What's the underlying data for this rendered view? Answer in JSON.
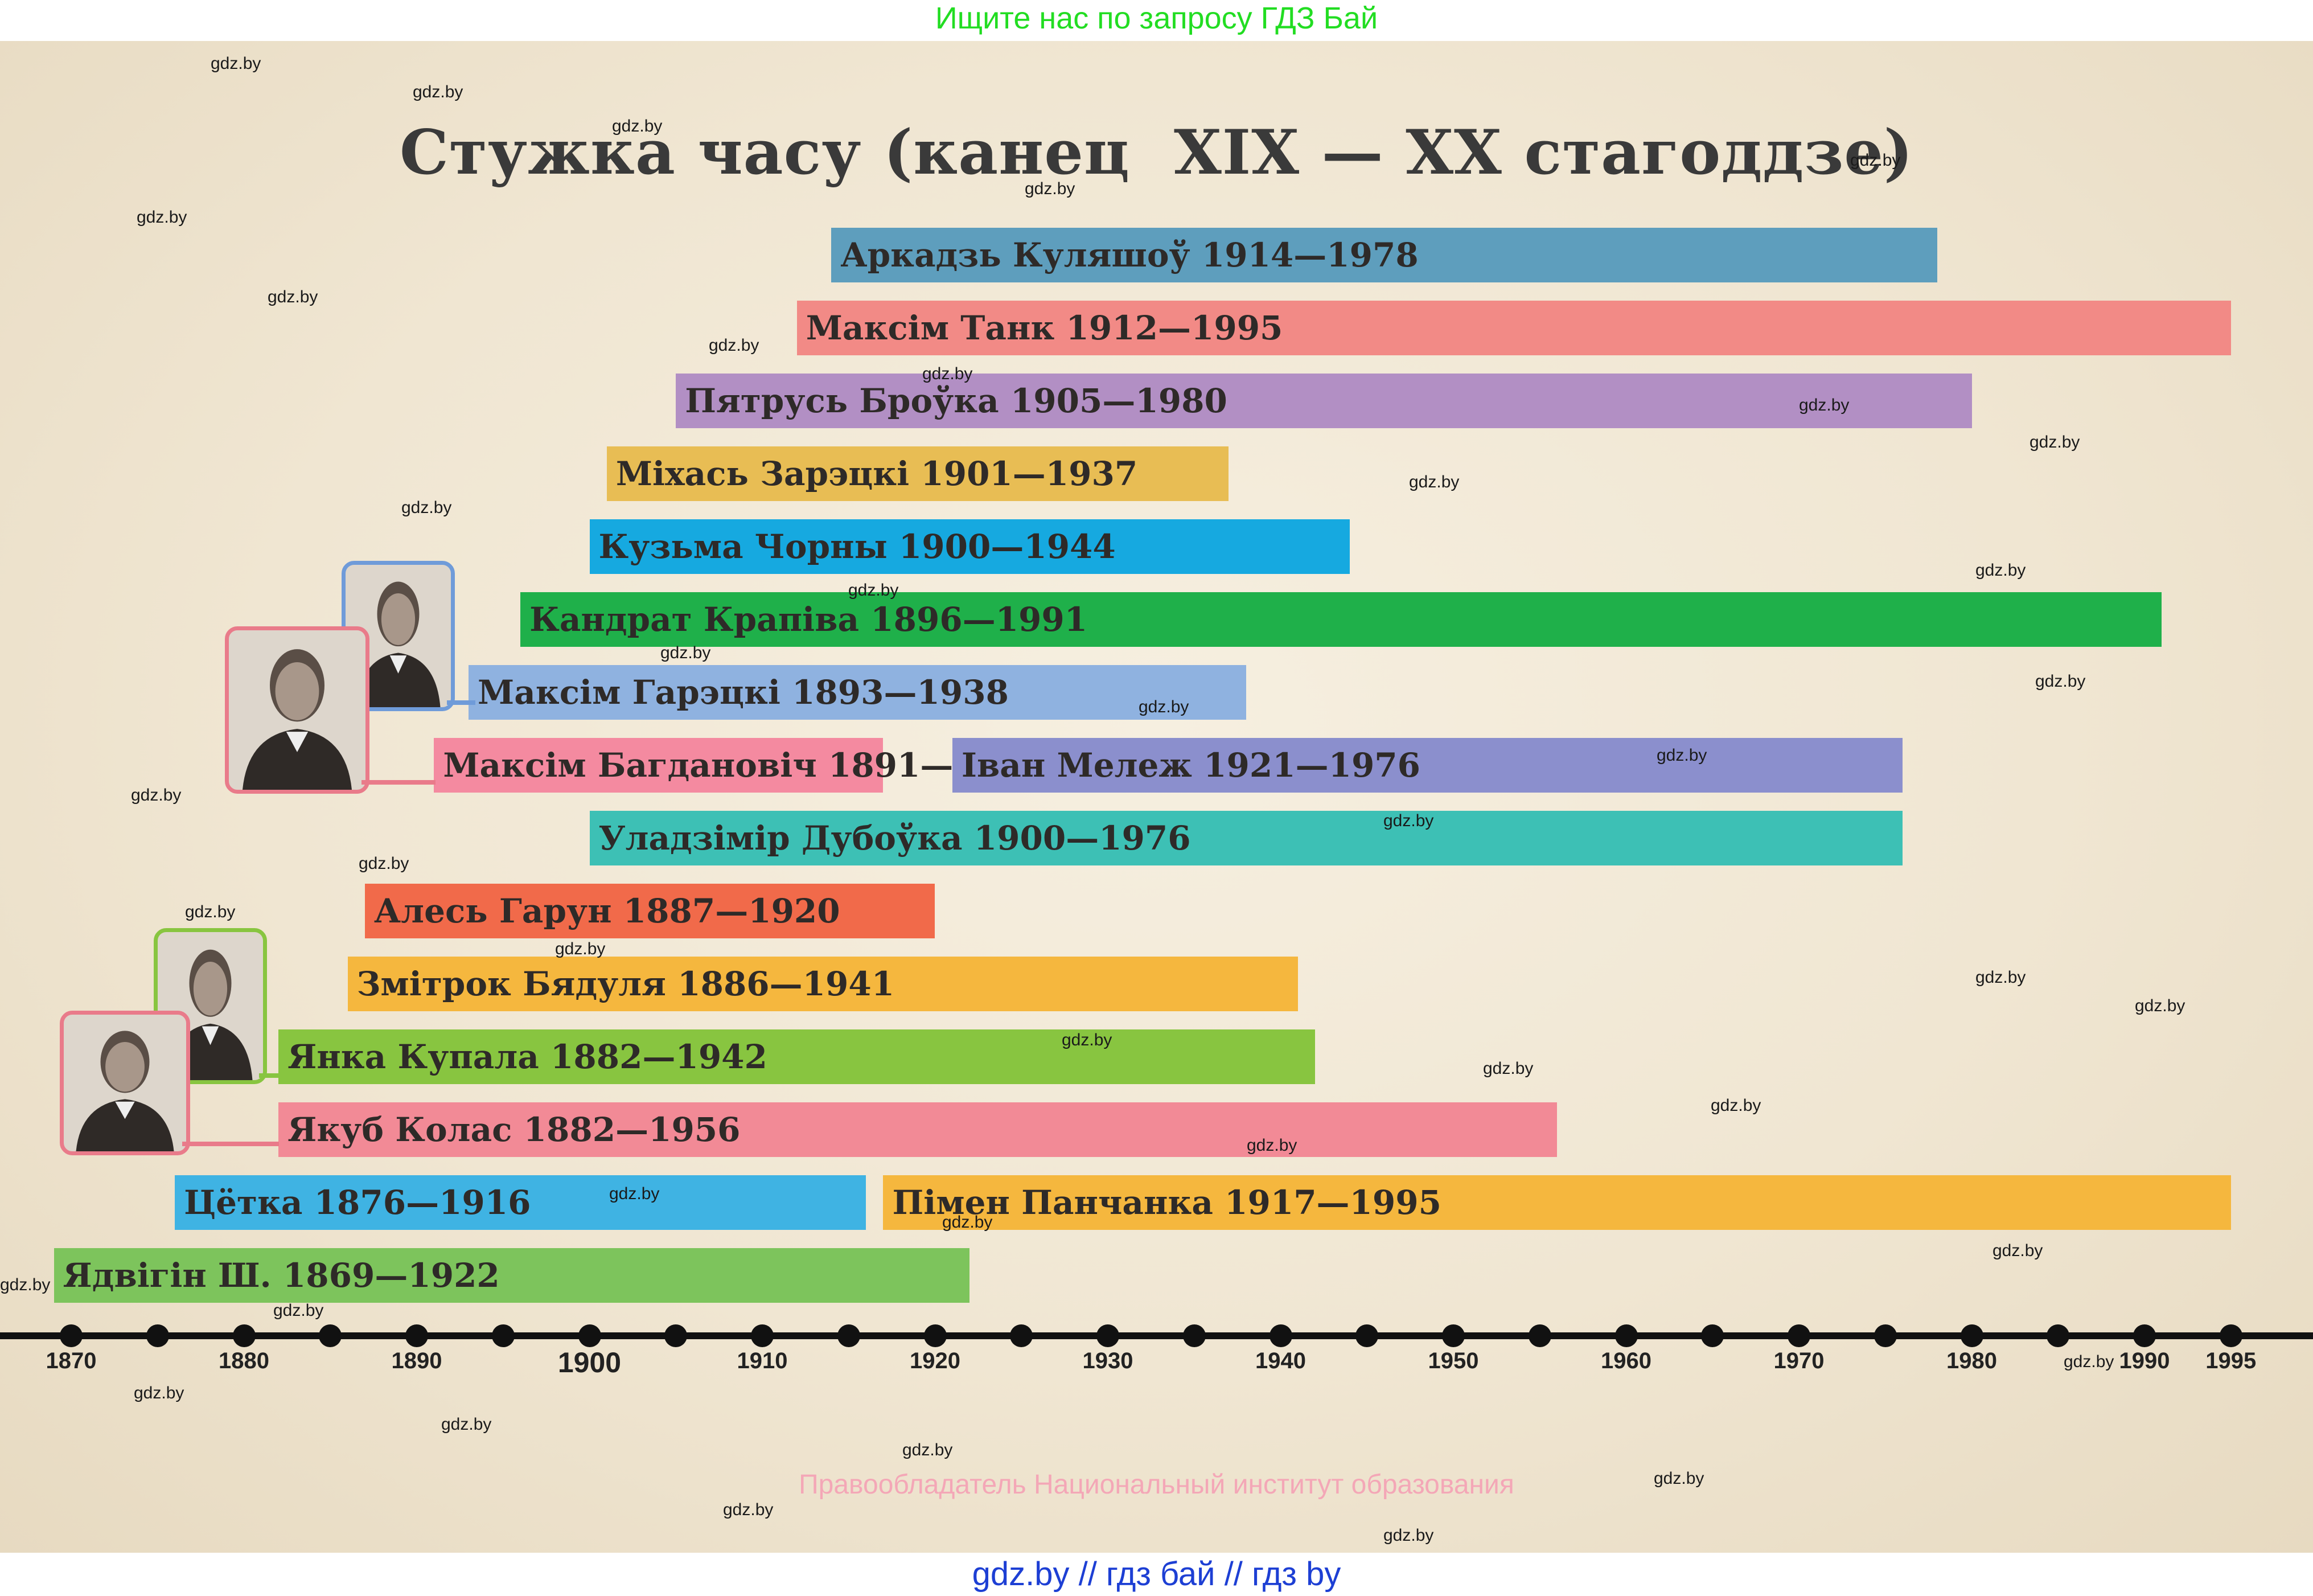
{
  "banners": {
    "top": "Ищите нас по запросу ГДЗ Бай",
    "bottom": "gdz.by  //  гдз бай  //  гдз by",
    "copyright": "Правообладатель Национальный институт образования"
  },
  "watermark_text": "gdz.by",
  "chart_data": {
    "type": "bar",
    "title": "Стужка часу (канец  XIX — XX стагоддзе)",
    "xlabel": "",
    "ylabel": "",
    "xlim": [
      1868,
      1997
    ],
    "x_ticks": [
      1870,
      1880,
      1890,
      1900,
      1910,
      1920,
      1930,
      1940,
      1950,
      1960,
      1970,
      1980,
      1990,
      1995
    ],
    "grid": false,
    "series": [
      {
        "label": "Аркадзь Куляшоў  1914—1978",
        "start": 1914,
        "end": 1978,
        "row": 0,
        "color": "#5e9ebd"
      },
      {
        "label": "Максім Танк 1912—1995",
        "start": 1912,
        "end": 1995,
        "row": 1,
        "color": "#f28a86"
      },
      {
        "label": "Пятрусь Броўка 1905—1980",
        "start": 1905,
        "end": 1980,
        "row": 2,
        "color": "#b28fc4"
      },
      {
        "label": "Міхась Зарэцкі 1901—1937",
        "start": 1901,
        "end": 1937,
        "row": 3,
        "color": "#e8bd54"
      },
      {
        "label": "Кузьма Чорны 1900—1944",
        "start": 1900,
        "end": 1944,
        "row": 4,
        "color": "#16a9e0"
      },
      {
        "label": "Кандрат Крапіва 1896—1991",
        "start": 1896,
        "end": 1991,
        "row": 5,
        "color": "#1fb04a"
      },
      {
        "label": "Максім Гарэцкі 1893—1938",
        "start": 1893,
        "end": 1938,
        "row": 6,
        "color": "#8fb2e0"
      },
      {
        "label": "Максім Багдановіч 1891—1917",
        "start": 1891,
        "end": 1917,
        "row": 7,
        "color": "#f48aa0"
      },
      {
        "label": "Іван Мележ  1921—1976",
        "start": 1921,
        "end": 1976,
        "row": 7,
        "color": "#8b8fcd"
      },
      {
        "label": "Уладзімір Дубоўка 1900—1976",
        "start": 1900,
        "end": 1976,
        "row": 8,
        "color": "#3dc0b5"
      },
      {
        "label": "Алесь Гарун 1887—1920",
        "start": 1887,
        "end": 1920,
        "row": 9,
        "color": "#f16a4a"
      },
      {
        "label": "Змітрок Бядуля 1886—1941",
        "start": 1886,
        "end": 1941,
        "row": 10,
        "color": "#f5b73e"
      },
      {
        "label": "Янка Купала 1882—1942",
        "start": 1882,
        "end": 1942,
        "row": 11,
        "color": "#88c540"
      },
      {
        "label": "Якуб Колас 1882—1956",
        "start": 1882,
        "end": 1956,
        "row": 12,
        "color": "#f28a96"
      },
      {
        "label": "Цётка 1876—1916",
        "start": 1876,
        "end": 1916,
        "row": 13,
        "color": "#3fb3e3"
      },
      {
        "label": "Пімен Панчанка 1917—1995",
        "start": 1917,
        "end": 1995,
        "row": 13,
        "color": "#f5b73e"
      },
      {
        "label": "Ядвігін Ш. 1869—1922",
        "start": 1869,
        "end": 1922,
        "row": 14,
        "color": "#7dc45c"
      }
    ]
  },
  "portraits": [
    {
      "icon": "portrait-photo-icon",
      "color": "#6f9bd9"
    },
    {
      "icon": "portrait-photo-icon",
      "color": "#e97b8a"
    },
    {
      "icon": "portrait-photo-icon",
      "color": "#88c540"
    },
    {
      "icon": "portrait-photo-icon",
      "color": "#e97b8a"
    }
  ]
}
